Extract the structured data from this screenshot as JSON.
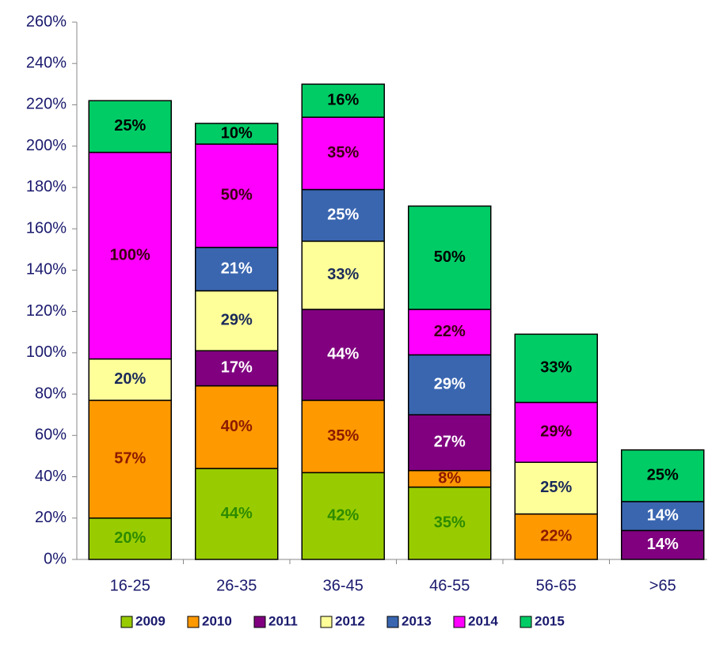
{
  "chart_data": {
    "type": "stacked_bar",
    "categories": [
      "16-25",
      "26-35",
      "36-45",
      "46-55",
      "56-65",
      ">65"
    ],
    "series": [
      {
        "name": "2009",
        "color": "#99cc00",
        "label_color": "#2e8b00",
        "values": [
          20,
          44,
          42,
          35,
          null,
          null
        ],
        "value_labels": [
          "20%",
          "44%",
          "42%",
          "35%",
          null,
          null
        ]
      },
      {
        "name": "2010",
        "color": "#ff9900",
        "label_color": "#8b1a00",
        "values": [
          57,
          40,
          35,
          8,
          22,
          null
        ],
        "value_labels": [
          "57%",
          "40%",
          "35%",
          "8%",
          "22%",
          null
        ]
      },
      {
        "name": "2011",
        "color": "#800080",
        "label_color": "#ffffff",
        "values": [
          null,
          17,
          44,
          27,
          null,
          14
        ],
        "value_labels": [
          null,
          "17%",
          "44%",
          "27%",
          null,
          "14%"
        ]
      },
      {
        "name": "2012",
        "color": "#ffff99",
        "label_color": "#1a2a5a",
        "values": [
          20,
          29,
          33,
          null,
          25,
          null
        ],
        "value_labels": [
          "20%",
          "29%",
          "33%",
          null,
          "25%",
          null
        ]
      },
      {
        "name": "2013",
        "color": "#3a66b0",
        "label_color": "#ffffff",
        "values": [
          null,
          21,
          25,
          29,
          null,
          14
        ],
        "value_labels": [
          null,
          "21%",
          "25%",
          "29%",
          null,
          "14%"
        ]
      },
      {
        "name": "2014",
        "color": "#ff00ff",
        "label_color": "#3a0010",
        "values": [
          100,
          50,
          35,
          22,
          29,
          null
        ],
        "value_labels": [
          "100%",
          "50%",
          "35%",
          "22%",
          "29%",
          null
        ]
      },
      {
        "name": "2015",
        "color": "#00cc66",
        "label_color": "#000000",
        "values": [
          25,
          10,
          16,
          50,
          33,
          25
        ],
        "value_labels": [
          "25%",
          "10%",
          "16%",
          "50%",
          "33%",
          "25%"
        ]
      }
    ],
    "ylim": [
      0,
      260
    ],
    "yticks": [
      {
        "value": 0,
        "label": "0%"
      },
      {
        "value": 20,
        "label": "20%"
      },
      {
        "value": 40,
        "label": "40%"
      },
      {
        "value": 60,
        "label": "60%"
      },
      {
        "value": 80,
        "label": "80%"
      },
      {
        "value": 100,
        "label": "100%"
      },
      {
        "value": 120,
        "label": "120%"
      },
      {
        "value": 140,
        "label": "140%"
      },
      {
        "value": 160,
        "label": "160%"
      },
      {
        "value": 180,
        "label": "180%"
      },
      {
        "value": 200,
        "label": "200%"
      },
      {
        "value": 220,
        "label": "220%"
      },
      {
        "value": 240,
        "label": "240%"
      },
      {
        "value": 260,
        "label": "260%"
      }
    ],
    "legend": "bottom"
  }
}
